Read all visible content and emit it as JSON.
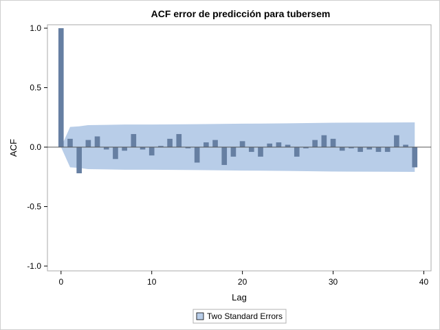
{
  "chart_data": {
    "type": "bar",
    "title": "ACF error de predicción para tubersem",
    "xlabel": "Lag",
    "ylabel": "ACF",
    "xlim": [
      -1.5,
      40.8
    ],
    "ylim": [
      -1.0,
      1.0
    ],
    "xticks": [
      0,
      10,
      20,
      30,
      40
    ],
    "yticks": [
      -1.0,
      -0.5,
      0.0,
      0.5,
      1.0
    ],
    "ytick_labels": [
      "-1.0",
      "-0.5",
      "0.0",
      "0.5",
      "1.0"
    ],
    "grid": false,
    "legend_position": "bottom",
    "lags": [
      0,
      1,
      2,
      3,
      4,
      5,
      6,
      7,
      8,
      9,
      10,
      11,
      12,
      13,
      14,
      15,
      16,
      17,
      18,
      19,
      20,
      21,
      22,
      23,
      24,
      25,
      26,
      27,
      28,
      29,
      30,
      31,
      32,
      33,
      34,
      35,
      36,
      37,
      38,
      39
    ],
    "values": [
      1.0,
      0.07,
      -0.22,
      0.06,
      0.09,
      -0.02,
      -0.1,
      -0.03,
      0.11,
      -0.02,
      -0.07,
      0.01,
      0.07,
      0.11,
      -0.01,
      -0.13,
      0.04,
      0.06,
      -0.15,
      -0.08,
      0.05,
      -0.04,
      -0.08,
      0.03,
      0.04,
      0.02,
      -0.08,
      -0.01,
      0.06,
      0.1,
      0.07,
      -0.03,
      -0.01,
      -0.04,
      -0.02,
      -0.04,
      -0.04,
      0.1,
      0.02,
      -0.17
    ],
    "std_error_band": {
      "name": "Two Standard Errors",
      "lags": [
        0,
        1,
        2,
        3,
        5,
        7,
        10,
        15,
        20,
        25,
        30,
        35,
        39
      ],
      "upper": [
        0.0,
        0.17,
        0.175,
        0.185,
        0.187,
        0.19,
        0.19,
        0.193,
        0.197,
        0.2,
        0.205,
        0.207,
        0.208
      ],
      "lower": [
        0.0,
        -0.17,
        -0.175,
        -0.185,
        -0.187,
        -0.19,
        -0.19,
        -0.193,
        -0.197,
        -0.2,
        -0.205,
        -0.207,
        -0.208
      ]
    },
    "colors": {
      "bar": "#667fa2",
      "band": "#b8cde8",
      "axis": "#000000",
      "frame": "#cfcfcf"
    }
  }
}
